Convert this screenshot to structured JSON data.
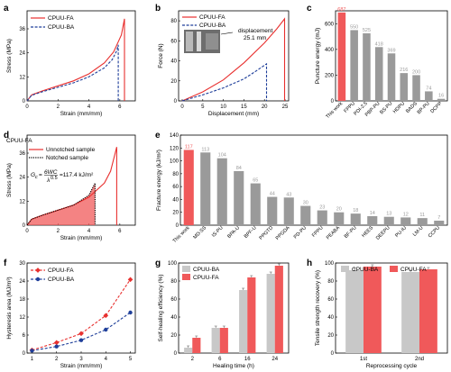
{
  "colors": {
    "fa": "#e8302f",
    "ba": "#1f3f9a",
    "gray": "#9a9a9a",
    "grayLight": "#c8c8c8",
    "red": "#f0595a"
  },
  "chart_data": [
    {
      "panel": "a",
      "type": "line",
      "xlabel": "Strain (mm/mm)",
      "ylabel": "Stress (MPa)",
      "xlim": [
        0,
        7
      ],
      "ylim": [
        0,
        45
      ],
      "xticks": [
        0,
        2,
        4,
        6
      ],
      "yticks": [
        0,
        12,
        24,
        36
      ],
      "series": [
        {
          "name": "CPUU-FA",
          "style": "solid",
          "x": [
            0,
            0.3,
            1,
            2,
            3,
            4,
            5,
            5.6,
            6.1,
            6.3,
            6.3
          ],
          "y": [
            0,
            3,
            5,
            7.5,
            10,
            13.5,
            19,
            24.5,
            33,
            41,
            0
          ]
        },
        {
          "name": "CPUU-BA",
          "style": "dashed",
          "x": [
            0,
            0.3,
            1,
            2,
            3,
            4,
            5,
            5.5,
            5.8,
            5.9,
            5.9
          ],
          "y": [
            0,
            2.8,
            4.6,
            6.8,
            9,
            12,
            16.5,
            20.5,
            25,
            28,
            0
          ]
        }
      ]
    },
    {
      "panel": "b",
      "type": "line",
      "xlabel": "Displacement (mm)",
      "ylabel": "Force (N)",
      "xlim": [
        0,
        25
      ],
      "ylim": [
        0,
        90
      ],
      "xticks": [
        0,
        5,
        10,
        15,
        20,
        25
      ],
      "yticks": [
        0,
        20,
        40,
        60,
        80
      ],
      "annotation": [
        "displacement",
        "25.1 mm"
      ],
      "series": [
        {
          "name": "CPUU-FA",
          "style": "solid",
          "x": [
            0,
            5,
            10,
            15,
            20,
            23,
            24.9,
            24.9
          ],
          "y": [
            0,
            9,
            21,
            38,
            58,
            72,
            82,
            0
          ]
        },
        {
          "name": "CPUU-BA",
          "style": "dashed",
          "x": [
            0,
            5,
            10,
            15,
            18,
            20.5,
            20.5
          ],
          "y": [
            0,
            6,
            13,
            22,
            30,
            37,
            0
          ]
        }
      ]
    },
    {
      "panel": "c",
      "type": "bar",
      "ylabel": "Puncture energy (mJ)",
      "ylim": [
        0,
        700
      ],
      "categories": [
        "This work",
        "FPPU",
        "PDI-2.5",
        "PBP-PU",
        "BS-PU",
        "HDPU",
        "BADS",
        "BP-PU",
        "DCPP"
      ],
      "values": [
        687,
        550,
        525,
        418,
        369,
        216,
        200,
        74,
        16
      ],
      "highlight_index": 0
    },
    {
      "panel": "d",
      "type": "line",
      "title": "CPUU-FA",
      "xlabel": "Strain (mm/mm)",
      "ylabel": "Stress (MPa)",
      "xlim": [
        0,
        7
      ],
      "ylim": [
        0,
        45
      ],
      "xticks": [
        0,
        2,
        4,
        6
      ],
      "yticks": [
        0,
        12,
        24,
        36
      ],
      "equation": {
        "lhs": "G",
        "sub": "c",
        "num": "6WC",
        "den": "λ",
        "den_sup": "0.5",
        "rhs": "=117.4 kJ/m²"
      },
      "series": [
        {
          "name": "Unnotched sample",
          "style": "solid",
          "x": [
            0,
            0.3,
            1,
            2,
            3,
            4,
            5,
            5.4,
            5.8,
            5.8
          ],
          "y": [
            0,
            3,
            5,
            7.5,
            10,
            14,
            21,
            27,
            39,
            0
          ]
        },
        {
          "name": "Notched sample",
          "style": "dotted",
          "x": [
            0,
            0.3,
            1,
            2,
            3,
            4,
            4.4,
            4.4
          ],
          "y": [
            0,
            3,
            5,
            7.5,
            10,
            15,
            21,
            0
          ]
        }
      ]
    },
    {
      "panel": "e",
      "type": "bar",
      "ylabel": "Fracture energy (kJ/m²)",
      "ylim": [
        0,
        140
      ],
      "yticks": [
        0,
        20,
        40,
        60,
        80,
        100,
        120,
        140
      ],
      "categories": [
        "This work",
        "MD-SS",
        "IS-PU",
        "BPA-U",
        "BPF-U",
        "PPGTD",
        "PPGDA",
        "PD-PU",
        "FPPU",
        "PEABA",
        "BF-PU",
        "HEES",
        "DEEPU",
        "PU-IU",
        "LM-U",
        "CCPU"
      ],
      "values": [
        117,
        113,
        104,
        84,
        65,
        44,
        43,
        30,
        23,
        20,
        18,
        14,
        13,
        12,
        11,
        7
      ],
      "highlight_index": 0
    },
    {
      "panel": "f",
      "type": "line",
      "xlabel": "Strain (mm/mm)",
      "ylabel": "Hysteresis area (MJ/m³)",
      "xlim": [
        0.8,
        5.2
      ],
      "ylim": [
        0,
        30
      ],
      "xticks": [
        1,
        2,
        3,
        4,
        5
      ],
      "yticks": [
        0,
        6,
        12,
        18,
        24,
        30
      ],
      "series": [
        {
          "name": "CPUU-FA",
          "x": [
            1,
            2,
            3,
            4,
            5
          ],
          "y": [
            1,
            3.5,
            6.5,
            12.5,
            24.5
          ]
        },
        {
          "name": "CPUU-BA",
          "x": [
            1,
            2,
            3,
            4,
            5
          ],
          "y": [
            0.8,
            2.2,
            4.3,
            7.8,
            13.5
          ]
        }
      ]
    },
    {
      "panel": "g",
      "type": "bar",
      "xlabel": "Healing time (h)",
      "ylabel": "Self-healing efficiency (%)",
      "ylim": [
        0,
        100
      ],
      "yticks": [
        0,
        20,
        40,
        60,
        80,
        100
      ],
      "categories": [
        "2",
        "6",
        "16",
        "24"
      ],
      "series": [
        {
          "name": "CPUU-BA",
          "values": [
            6,
            28,
            70,
            88
          ]
        },
        {
          "name": "CPUU-FA",
          "values": [
            17,
            28,
            84,
            97
          ]
        }
      ]
    },
    {
      "panel": "h",
      "type": "bar",
      "xlabel": "Reprocessing cycle",
      "ylabel": "Tensile strength recovery (%)",
      "ylim": [
        0,
        100
      ],
      "yticks": [
        0,
        20,
        40,
        60,
        80,
        100
      ],
      "categories": [
        "1st",
        "2nd"
      ],
      "series": [
        {
          "name": "CPUU-BA",
          "values": [
            92,
            90
          ]
        },
        {
          "name": "CPUU-FA",
          "values": [
            96,
            93
          ]
        }
      ]
    }
  ]
}
